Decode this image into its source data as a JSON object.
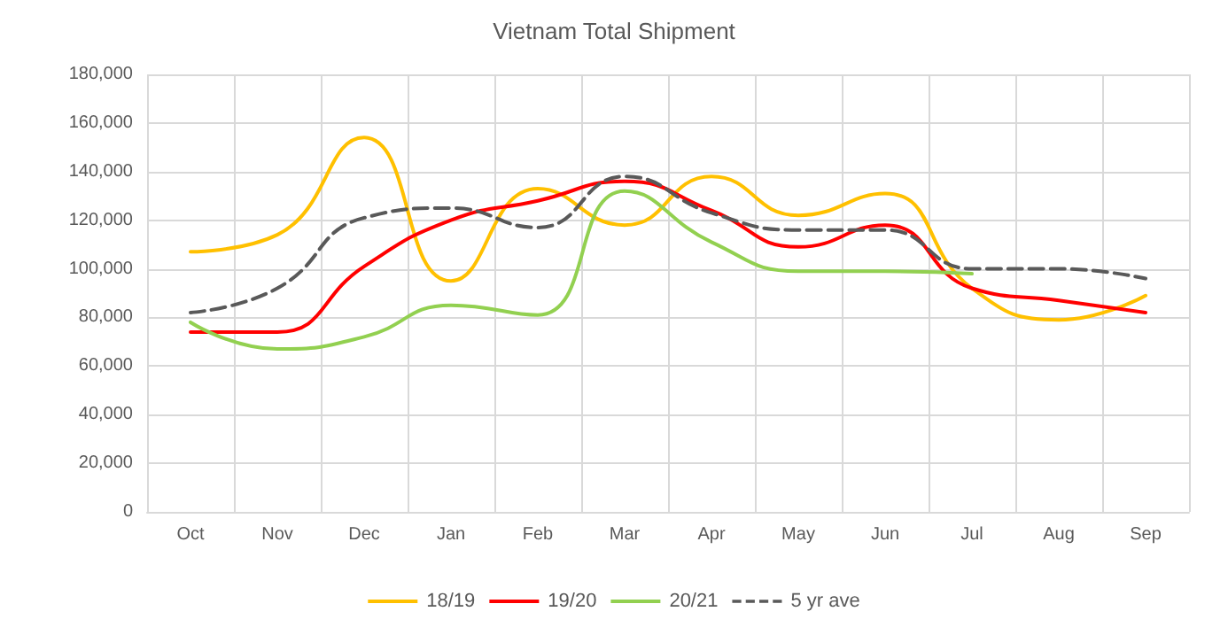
{
  "chart_data": {
    "type": "line",
    "title": "Vietnam Total Shipment",
    "categories": [
      "Oct",
      "Nov",
      "Dec",
      "Jan",
      "Feb",
      "Mar",
      "Apr",
      "May",
      "Jun",
      "Jul",
      "Aug",
      "Sep"
    ],
    "series": [
      {
        "name": "18/19",
        "color": "#ffc000",
        "values": [
          107000,
          114000,
          154000,
          95000,
          133000,
          118000,
          138000,
          122000,
          131000,
          92000,
          79000,
          89000
        ]
      },
      {
        "name": "19/20",
        "color": "#ff0000",
        "values": [
          74000,
          74000,
          101000,
          120000,
          128000,
          136000,
          124000,
          109000,
          118000,
          92000,
          87000,
          82000
        ]
      },
      {
        "name": "20/21",
        "color": "#92d050",
        "values": [
          78000,
          67000,
          72000,
          85000,
          81000,
          132000,
          111000,
          99000,
          99000,
          98000,
          null,
          null
        ]
      },
      {
        "name": "5 yr ave",
        "color": "#595959",
        "line_style": "dashed",
        "values": [
          82000,
          92000,
          121000,
          125000,
          117000,
          138000,
          123000,
          116000,
          116000,
          100000,
          100000,
          96000
        ]
      }
    ],
    "ylim": [
      0,
      180000
    ],
    "yticks": [
      0,
      {
        "value": 20000,
        "label": "20,000"
      },
      {
        "value": 40000,
        "label": "40,000"
      },
      {
        "value": 60000,
        "label": "60,000"
      },
      {
        "value": 80000,
        "label": "80,000"
      },
      {
        "value": 100000,
        "label": "100,000"
      },
      {
        "value": 120000,
        "label": "120,000"
      },
      {
        "value": 140000,
        "label": "140,000"
      },
      {
        "value": 160000,
        "label": "160,000"
      },
      {
        "value": 180000,
        "label": "180,000"
      }
    ],
    "grid": true,
    "legend": "bottom",
    "marker": "none"
  }
}
